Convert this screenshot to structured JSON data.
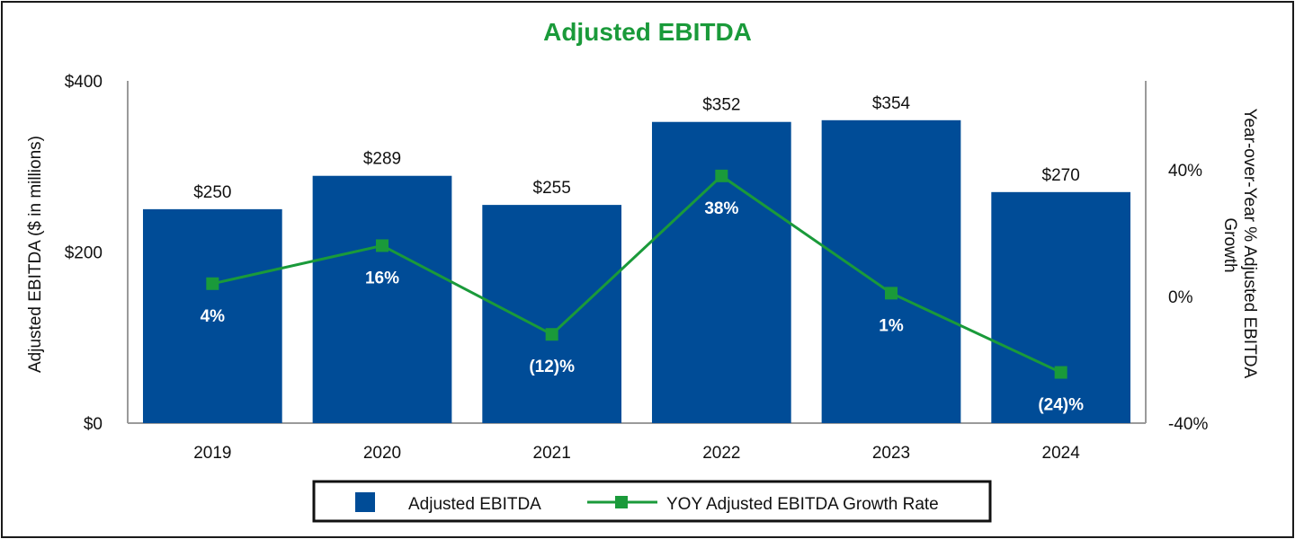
{
  "chart_data": {
    "type": "bar",
    "title": "Adjusted EBITDA",
    "categories": [
      "2019",
      "2020",
      "2021",
      "2022",
      "2023",
      "2024"
    ],
    "series": [
      {
        "name": "Adjusted EBITDA",
        "axis": "left",
        "type": "bar",
        "color": "#004c97",
        "values": [
          250,
          289,
          255,
          352,
          354,
          270
        ],
        "labels": [
          "$250",
          "$289",
          "$255",
          "$352",
          "$354",
          "$270"
        ]
      },
      {
        "name": "YOY Adjusted EBITDA Growth Rate",
        "axis": "right",
        "type": "line",
        "color": "#1a9a3a",
        "values": [
          4,
          16,
          -12,
          38,
          1,
          -24
        ],
        "labels": [
          "4%",
          "16%",
          "(12)%",
          "38%",
          "1%",
          "(24)%"
        ]
      }
    ],
    "ylabel": "Adjusted EBITDA ($ in millions)",
    "ylim": [
      0,
      400
    ],
    "yticks": [
      0,
      200,
      400
    ],
    "ytick_labels": [
      "$0",
      "$200",
      "$400"
    ],
    "y2label_lines": [
      "Year-over-Year % Adjusted EBITDA",
      "Growth"
    ],
    "y2lim": [
      -40,
      68
    ],
    "y2ticks": [
      -40,
      0,
      40
    ],
    "y2tick_labels": [
      "-40%",
      "0%",
      "40%"
    ],
    "grid": false,
    "legend_position": "bottom"
  }
}
